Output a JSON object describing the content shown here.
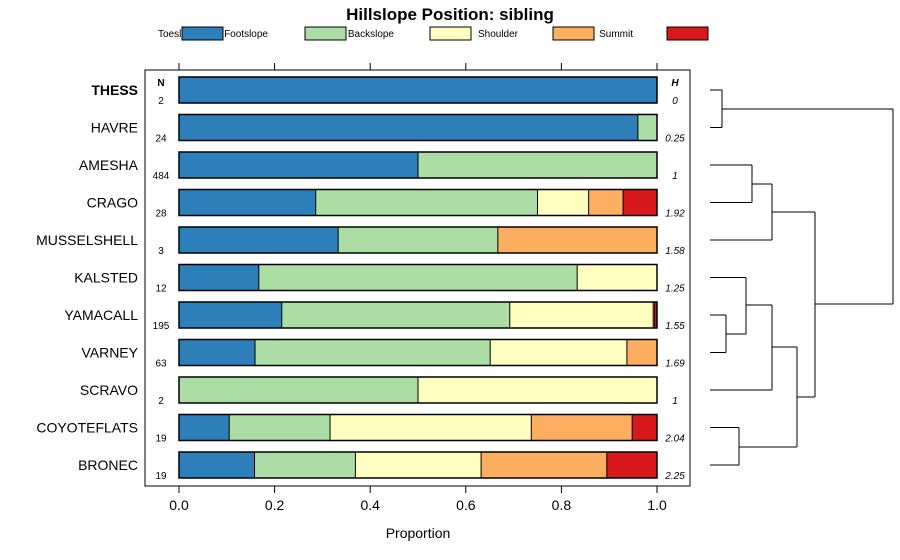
{
  "chart_data": {
    "type": "bar",
    "orientation": "horizontal-stacked",
    "title": "Hillslope Position: sibling",
    "xlabel": "Proportion",
    "ylabel": "",
    "xlim": [
      0,
      1
    ],
    "xticks": [
      "0.0",
      "0.2",
      "0.4",
      "0.6",
      "0.8",
      "1.0"
    ],
    "xtick_values": [
      0,
      0.2,
      0.4,
      0.6,
      0.8,
      1.0
    ],
    "n_header": "N",
    "h_header": "H",
    "legend": [
      {
        "name": "Toeslope",
        "color": "#2c7fb8"
      },
      {
        "name": "Footslope",
        "color": "#abdda4"
      },
      {
        "name": "Backslope",
        "color": "#ffffbf"
      },
      {
        "name": "Shoulder",
        "color": "#fdae61"
      },
      {
        "name": "Summit",
        "color": "#d7191c"
      }
    ],
    "categories": [
      "THESS",
      "HAVRE",
      "AMESHA",
      "CRAGO",
      "MUSSELSHELL",
      "KALSTED",
      "YAMACALL",
      "VARNEY",
      "SCRAVO",
      "COYOTEFLATS",
      "BRONEC"
    ],
    "highlight": "THESS",
    "n": [
      "2",
      "24",
      "484",
      "28",
      "3",
      "12",
      "195",
      "63",
      "2",
      "19",
      "19"
    ],
    "h": [
      "0",
      "0.25",
      "1",
      "1.92",
      "1.58",
      "1.25",
      "1.55",
      "1.69",
      "1",
      "2.04",
      "2.25"
    ],
    "series": [
      {
        "name": "Toeslope",
        "values": [
          1.0,
          0.96,
          0.5,
          0.286,
          0.333,
          0.167,
          0.215,
          0.159,
          0.0,
          0.105,
          0.158
        ]
      },
      {
        "name": "Footslope",
        "values": [
          0.0,
          0.04,
          0.5,
          0.464,
          0.334,
          0.666,
          0.477,
          0.492,
          0.5,
          0.211,
          0.211
        ]
      },
      {
        "name": "Backslope",
        "values": [
          0.0,
          0.0,
          0.0,
          0.107,
          0.0,
          0.167,
          0.3,
          0.286,
          0.5,
          0.421,
          0.263
        ]
      },
      {
        "name": "Shoulder",
        "values": [
          0.0,
          0.0,
          0.0,
          0.072,
          0.333,
          0.0,
          0.003,
          0.063,
          0.0,
          0.211,
          0.263
        ]
      },
      {
        "name": "Summit",
        "values": [
          0.0,
          0.0,
          0.0,
          0.071,
          0.0,
          0.0,
          0.005,
          0.0,
          0.0,
          0.052,
          0.105
        ]
      }
    ],
    "dendrogram": "hierarchical clustering of the 11 series shown at right"
  }
}
